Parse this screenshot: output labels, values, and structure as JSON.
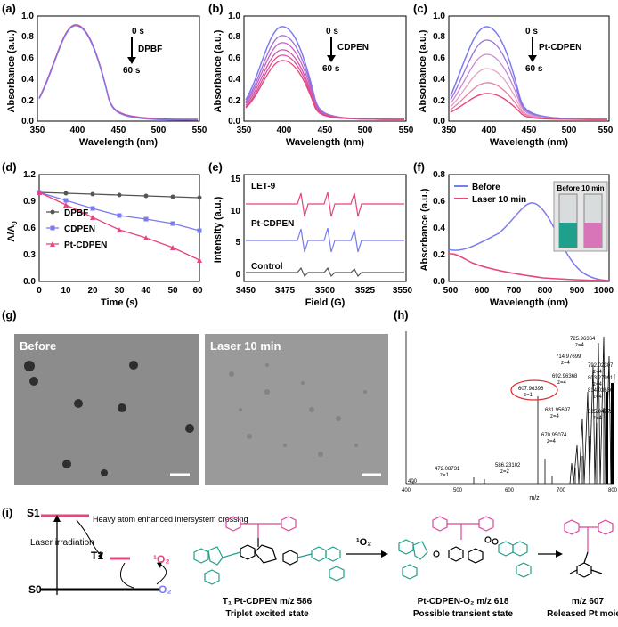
{
  "panels": {
    "a": {
      "label": "(a)",
      "ylabel": "Absorbance (a.u.)",
      "xlabel": "Wavelength (nm)",
      "start": "0 s",
      "end": "60 s",
      "species": "DPBF",
      "xticks": [
        "350",
        "400",
        "450",
        "500",
        "550"
      ],
      "yticks": [
        "0.0",
        "0.2",
        "0.4",
        "0.6",
        "0.8",
        "1.0"
      ]
    },
    "b": {
      "label": "(b)",
      "ylabel": "Absorbance (a.u.)",
      "xlabel": "Wavelength (nm)",
      "start": "0 s",
      "end": "60 s",
      "species": "CDPEN",
      "xticks": [
        "350",
        "400",
        "450",
        "500",
        "550"
      ],
      "yticks": [
        "0.0",
        "0.2",
        "0.4",
        "0.6",
        "0.8",
        "1.0"
      ]
    },
    "c": {
      "label": "(c)",
      "ylabel": "Absorbance (a.u.)",
      "xlabel": "Wavelength (nm)",
      "start": "0 s",
      "end": "60 s",
      "species": "Pt-CDPEN",
      "xticks": [
        "350",
        "400",
        "450",
        "500",
        "550"
      ],
      "yticks": [
        "0.0",
        "0.2",
        "0.4",
        "0.6",
        "0.8",
        "1.0"
      ]
    },
    "d": {
      "label": "(d)",
      "ylabel": "A/A",
      "ysub": "0",
      "xlabel": "Time (s)",
      "xticks": [
        "0",
        "10",
        "20",
        "30",
        "40",
        "50",
        "60"
      ],
      "yticks": [
        "0.0",
        "0.3",
        "0.6",
        "0.9",
        "1.2"
      ],
      "legend": [
        "DPBF",
        "CDPEN",
        "Pt-CDPEN"
      ]
    },
    "e": {
      "label": "(e)",
      "ylabel": "Intensity (a.u.)",
      "xlabel": "Field (G)",
      "xticks": [
        "3450",
        "3475",
        "3500",
        "3525",
        "3550"
      ],
      "yticks": [
        "0",
        "5",
        "10",
        "15"
      ],
      "traces": [
        "LET-9",
        "Pt-CDPEN",
        "Control"
      ]
    },
    "f": {
      "label": "(f)",
      "ylabel": "Absorbance (a.u.)",
      "xlabel": "Wavelength (nm)",
      "xticks": [
        "500",
        "600",
        "700",
        "800",
        "900",
        "1000"
      ],
      "yticks": [
        "0.0",
        "0.2",
        "0.4",
        "0.6",
        "0.8"
      ],
      "legend": [
        "Before",
        "Laser 10 min"
      ],
      "inset": "Before 10 min"
    },
    "g": {
      "label": "(g)",
      "left_title": "Before",
      "right_title": "Laser 10 min"
    },
    "h": {
      "label": "(h)",
      "xlabel": "m/z",
      "peaks": [
        {
          "mz": "725.96364",
          "z": "z=4"
        },
        {
          "mz": "714.97699",
          "z": "z=4"
        },
        {
          "mz": "792.02307",
          "z": "z=4"
        },
        {
          "mz": "692.96368",
          "z": "z=4"
        },
        {
          "mz": "803.27991",
          "z": "z=4"
        },
        {
          "mz": "607.96396",
          "z": "z=1"
        },
        {
          "mz": "814.03636",
          "z": "z=4"
        },
        {
          "mz": "681.95697",
          "z": "z=4"
        },
        {
          "mz": "825.04272",
          "z": "z=4"
        },
        {
          "mz": "670.95074",
          "z": "z=4"
        },
        {
          "mz": "586.23102",
          "z": "z=2"
        },
        {
          "mz": "472.08731",
          "z": "z=1"
        }
      ],
      "xticks": [
        "400",
        "500",
        "600",
        "700",
        "800"
      ]
    },
    "i": {
      "label": "(i)",
      "s1": "S1",
      "s0": "S0",
      "t1": "T1",
      "isc": "Heavy atom enhanced intersystem crossing",
      "laser": "Laser irradiation",
      "o2_singlet": "¹O₂",
      "o2": "O₂",
      "arrow_label": "¹O₂",
      "mol1_title": "T₁ Pt-CDPEN m/z 586",
      "mol1_sub": "Triplet excited state",
      "mol2_title": "Pt-CDPEN-O₂ m/z 618",
      "mol2_sub": "Possible transient state",
      "mol3_title": "m/z 607",
      "mol3_sub": "Released Pt moiety"
    }
  },
  "colors": {
    "blue": "#7b7bf0",
    "pink": "#e8457a",
    "grey": "#5a5a5a",
    "teal": "#1fa08c",
    "magenta": "#e0449a"
  }
}
